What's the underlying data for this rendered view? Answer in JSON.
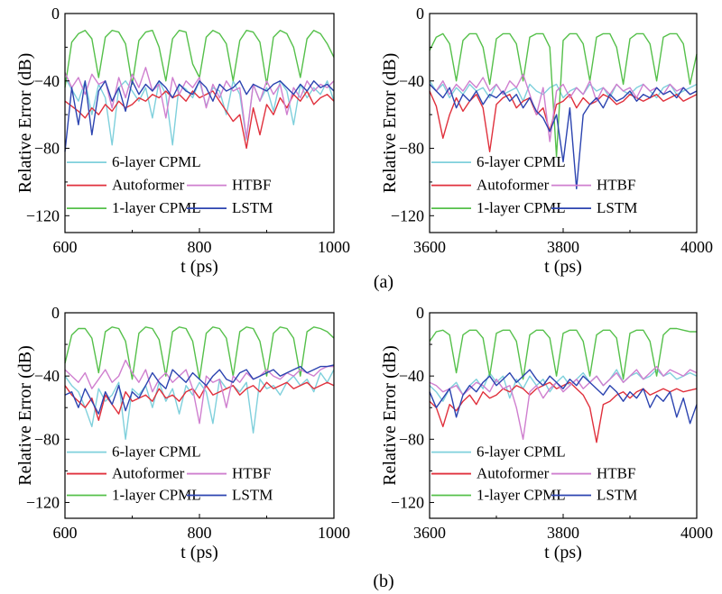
{
  "colors": {
    "six_layer_cpml": "#7fd0dc",
    "autoformer": "#e0303c",
    "htbf": "#cf7fcf",
    "one_layer_cpml": "#55c04a",
    "lstm": "#2c44b0"
  },
  "captions": {
    "a": "(a)",
    "b": "(b)"
  },
  "chart_data": [
    {
      "type": "line",
      "panel": "a-left",
      "xlabel": "t (ps)",
      "ylabel": "Relative Error (dB)",
      "xlim": [
        600,
        1000
      ],
      "ylim": [
        -130,
        0
      ],
      "xticks": [
        "600",
        "800",
        "1000"
      ],
      "yticks": [
        "0",
        "−40",
        "−80",
        "−120"
      ],
      "series": [
        {
          "name": "6-layer CPML",
          "key": "six_layer_cpml",
          "values": [
            -38,
            -45,
            -52,
            -40,
            -60,
            -42,
            -50,
            -78,
            -44,
            -40,
            -46,
            -52,
            -44,
            -62,
            -40,
            -48,
            -78,
            -42,
            -45,
            -50,
            -40,
            -55,
            -44,
            -46,
            -60,
            -40,
            -48,
            -75,
            -42,
            -52,
            -44,
            -58,
            -40,
            -46,
            -66,
            -42,
            -50,
            -44,
            -48,
            -40,
            -52
          ]
        },
        {
          "name": "Autoformer",
          "key": "autoformer",
          "values": [
            -52,
            -55,
            -58,
            -62,
            -56,
            -60,
            -54,
            -58,
            -52,
            -56,
            -54,
            -50,
            -52,
            -48,
            -50,
            -46,
            -50,
            -48,
            -52,
            -46,
            -50,
            -48,
            -46,
            -52,
            -58,
            -64,
            -60,
            -80,
            -56,
            -72,
            -54,
            -60,
            -50,
            -56,
            -48,
            -52,
            -46,
            -54,
            -50,
            -48,
            -52
          ]
        },
        {
          "name": "HTBF",
          "key": "htbf",
          "values": [
            -35,
            -44,
            -38,
            -48,
            -36,
            -42,
            -40,
            -56,
            -38,
            -50,
            -36,
            -44,
            -32,
            -46,
            -42,
            -62,
            -38,
            -48,
            -40,
            -44,
            -38,
            -56,
            -42,
            -50,
            -40,
            -46,
            -44,
            -74,
            -42,
            -52,
            -40,
            -48,
            -42,
            -60,
            -44,
            -50,
            -40,
            -46,
            -42,
            -44,
            -40
          ]
        },
        {
          "name": "1-layer CPML",
          "key": "one_layer_cpml",
          "values": [
            -44,
            -17,
            -12,
            -10,
            -15,
            -38,
            -14,
            -10,
            -11,
            -18,
            -42,
            -16,
            -11,
            -10,
            -20,
            -40,
            -15,
            -10,
            -11,
            -30,
            -38,
            -14,
            -10,
            -12,
            -18,
            -40,
            -16,
            -10,
            -11,
            -17,
            -42,
            -14,
            -10,
            -12,
            -20,
            -38,
            -15,
            -10,
            -12,
            -18,
            -26
          ]
        },
        {
          "name": "LSTM",
          "key": "lstm",
          "values": [
            -82,
            -44,
            -66,
            -40,
            -72,
            -46,
            -40,
            -52,
            -44,
            -58,
            -40,
            -48,
            -42,
            -46,
            -40,
            -44,
            -50,
            -42,
            -46,
            -48,
            -40,
            -44,
            -52,
            -42,
            -46,
            -44,
            -40,
            -48,
            -42,
            -44,
            -46,
            -42,
            -40,
            -44,
            -48,
            -42,
            -46,
            -40,
            -44,
            -42,
            -46
          ]
        }
      ]
    },
    {
      "type": "line",
      "panel": "a-right",
      "xlabel": "t (ps)",
      "ylabel": "Relative Error (dB)",
      "xlim": [
        3600,
        4000
      ],
      "ylim": [
        -130,
        0
      ],
      "xticks": [
        "3600",
        "3800",
        "4000"
      ],
      "yticks": [
        "0",
        "−40",
        "−80",
        "−120"
      ],
      "series": [
        {
          "name": "6-layer CPML",
          "key": "six_layer_cpml",
          "values": [
            -40,
            -46,
            -42,
            -50,
            -44,
            -48,
            -42,
            -46,
            -44,
            -50,
            -42,
            -48,
            -46,
            -44,
            -52,
            -42,
            -46,
            -48,
            -44,
            -42,
            -50,
            -46,
            -44,
            -48,
            -42,
            -46,
            -44,
            -50,
            -42,
            -46,
            -48,
            -44,
            -42,
            -46,
            -50,
            -44,
            -42,
            -48,
            -46,
            -44,
            -42
          ]
        },
        {
          "name": "Autoformer",
          "key": "autoformer",
          "values": [
            -46,
            -55,
            -74,
            -60,
            -50,
            -58,
            -52,
            -48,
            -56,
            -82,
            -54,
            -50,
            -48,
            -56,
            -52,
            -50,
            -60,
            -56,
            -70,
            -54,
            -52,
            -48,
            -56,
            -50,
            -54,
            -52,
            -48,
            -50,
            -54,
            -52,
            -48,
            -50,
            -52,
            -50,
            -48,
            -52,
            -50,
            -48,
            -52,
            -50,
            -48
          ]
        },
        {
          "name": "HTBF",
          "key": "htbf",
          "values": [
            -42,
            -46,
            -40,
            -48,
            -42,
            -46,
            -40,
            -44,
            -38,
            -46,
            -42,
            -48,
            -40,
            -44,
            -36,
            -48,
            -60,
            -44,
            -76,
            -46,
            -42,
            -50,
            -44,
            -48,
            -40,
            -52,
            -44,
            -48,
            -42,
            -46,
            -44,
            -50,
            -42,
            -46,
            -44,
            -48,
            -42,
            -46,
            -44,
            -48,
            -46
          ]
        },
        {
          "name": "1-layer CPML",
          "key": "one_layer_cpml",
          "values": [
            -22,
            -14,
            -12,
            -18,
            -40,
            -16,
            -12,
            -12,
            -20,
            -42,
            -15,
            -12,
            -12,
            -18,
            -40,
            -14,
            -12,
            -12,
            -20,
            -85,
            -16,
            -12,
            -12,
            -18,
            -40,
            -14,
            -12,
            -12,
            -20,
            -42,
            -15,
            -12,
            -12,
            -18,
            -40,
            -14,
            -12,
            -12,
            -18,
            -42,
            -24
          ]
        },
        {
          "name": "LSTM",
          "key": "lstm",
          "values": [
            -42,
            -46,
            -50,
            -44,
            -56,
            -48,
            -52,
            -46,
            -54,
            -48,
            -50,
            -46,
            -52,
            -48,
            -56,
            -50,
            -58,
            -62,
            -70,
            -60,
            -88,
            -56,
            -104,
            -60,
            -54,
            -50,
            -56,
            -48,
            -52,
            -50,
            -46,
            -52,
            -48,
            -50,
            -44,
            -48,
            -46,
            -50,
            -44,
            -48,
            -46
          ]
        }
      ]
    },
    {
      "type": "line",
      "panel": "b-left",
      "xlabel": "t (ps)",
      "ylabel": "Relative Error (dB)",
      "xlim": [
        600,
        1000
      ],
      "ylim": [
        -130,
        0
      ],
      "xticks": [
        "600",
        "800",
        "1000"
      ],
      "yticks": [
        "0",
        "−40",
        "−80",
        "−120"
      ],
      "series": [
        {
          "name": "6-layer CPML",
          "key": "six_layer_cpml",
          "values": [
            -40,
            -46,
            -50,
            -60,
            -72,
            -48,
            -56,
            -52,
            -44,
            -80,
            -48,
            -52,
            -46,
            -60,
            -44,
            -56,
            -48,
            -64,
            -46,
            -52,
            -44,
            -50,
            -70,
            -42,
            -48,
            -46,
            -50,
            -44,
            -76,
            -42,
            -48,
            -46,
            -52,
            -44,
            -40,
            -46,
            -42,
            -50,
            -38,
            -44,
            -36
          ]
        },
        {
          "name": "Autoformer",
          "key": "autoformer",
          "values": [
            -46,
            -52,
            -56,
            -60,
            -54,
            -68,
            -52,
            -58,
            -64,
            -50,
            -56,
            -54,
            -52,
            -56,
            -48,
            -54,
            -52,
            -56,
            -50,
            -48,
            -54,
            -46,
            -52,
            -50,
            -48,
            -46,
            -52,
            -48,
            -46,
            -50,
            -44,
            -48,
            -46,
            -44,
            -48,
            -46,
            -44,
            -48,
            -46,
            -44,
            -46
          ]
        },
        {
          "name": "HTBF",
          "key": "htbf",
          "values": [
            -36,
            -40,
            -44,
            -38,
            -48,
            -42,
            -36,
            -44,
            -40,
            -30,
            -38,
            -44,
            -36,
            -50,
            -42,
            -38,
            -44,
            -40,
            -36,
            -48,
            -70,
            -40,
            -44,
            -42,
            -60,
            -40,
            -44,
            -38,
            -42,
            -40,
            -36,
            -40,
            -42,
            -38,
            -40,
            -36,
            -38,
            -40,
            -36,
            -34,
            -34
          ]
        },
        {
          "name": "1-layer CPML",
          "key": "one_layer_cpml",
          "values": [
            -32,
            -14,
            -10,
            -10,
            -16,
            -38,
            -12,
            -9,
            -10,
            -18,
            -42,
            -13,
            -9,
            -10,
            -17,
            -40,
            -12,
            -9,
            -10,
            -18,
            -42,
            -13,
            -9,
            -10,
            -16,
            -40,
            -12,
            -9,
            -10,
            -18,
            -40,
            -13,
            -9,
            -10,
            -16,
            -40,
            -12,
            -9,
            -10,
            -12,
            -16
          ]
        },
        {
          "name": "LSTM",
          "key": "lstm",
          "values": [
            -52,
            -50,
            -60,
            -48,
            -56,
            -64,
            -50,
            -58,
            -46,
            -62,
            -50,
            -54,
            -46,
            -38,
            -44,
            -48,
            -36,
            -40,
            -44,
            -38,
            -42,
            -46,
            -40,
            -36,
            -42,
            -44,
            -38,
            -36,
            -42,
            -40,
            -38,
            -36,
            -40,
            -38,
            -36,
            -34,
            -38,
            -36,
            -34,
            -34,
            -33
          ]
        }
      ]
    },
    {
      "type": "line",
      "panel": "b-right",
      "xlabel": "t (ps)",
      "ylabel": "Relative Error (dB)",
      "xlim": [
        3600,
        4000
      ],
      "ylim": [
        -130,
        0
      ],
      "xticks": [
        "3600",
        "3800",
        "4000"
      ],
      "yticks": [
        "0",
        "−40",
        "−80",
        "−120"
      ],
      "series": [
        {
          "name": "6-layer CPML",
          "key": "six_layer_cpml",
          "values": [
            -46,
            -50,
            -56,
            -48,
            -44,
            -52,
            -46,
            -42,
            -48,
            -38,
            -44,
            -40,
            -54,
            -42,
            -48,
            -40,
            -46,
            -42,
            -50,
            -44,
            -40,
            -46,
            -42,
            -38,
            -44,
            -40,
            -46,
            -42,
            -36,
            -44,
            -40,
            -38,
            -42,
            -40,
            -36,
            -40,
            -38,
            -42,
            -40,
            -38,
            -40
          ]
        },
        {
          "name": "Autoformer",
          "key": "autoformer",
          "values": [
            -56,
            -60,
            -72,
            -58,
            -62,
            -56,
            -52,
            -58,
            -50,
            -54,
            -52,
            -48,
            -50,
            -46,
            -48,
            -52,
            -48,
            -46,
            -44,
            -48,
            -46,
            -44,
            -48,
            -52,
            -60,
            -82,
            -58,
            -56,
            -52,
            -50,
            -54,
            -50,
            -48,
            -52,
            -50,
            -48,
            -50,
            -48,
            -50,
            -49,
            -48
          ]
        },
        {
          "name": "HTBF",
          "key": "htbf",
          "values": [
            -44,
            -46,
            -50,
            -48,
            -46,
            -52,
            -48,
            -44,
            -46,
            -50,
            -42,
            -48,
            -46,
            -60,
            -80,
            -50,
            -46,
            -54,
            -48,
            -44,
            -50,
            -46,
            -42,
            -48,
            -44,
            -40,
            -46,
            -42,
            -38,
            -44,
            -40,
            -36,
            -42,
            -38,
            -34,
            -40,
            -36,
            -38,
            -40,
            -36,
            -38
          ]
        },
        {
          "name": "1-layer CPML",
          "key": "one_layer_cpml",
          "values": [
            -18,
            -12,
            -11,
            -14,
            -38,
            -14,
            -11,
            -11,
            -16,
            -40,
            -13,
            -11,
            -11,
            -18,
            -42,
            -14,
            -11,
            -11,
            -16,
            -40,
            -13,
            -11,
            -11,
            -18,
            -40,
            -14,
            -11,
            -11,
            -16,
            -42,
            -13,
            -11,
            -11,
            -18,
            -40,
            -14,
            -10,
            -10,
            -11,
            -12,
            -12
          ]
        },
        {
          "name": "LSTM",
          "key": "lstm",
          "values": [
            -50,
            -60,
            -54,
            -48,
            -66,
            -52,
            -46,
            -50,
            -44,
            -40,
            -46,
            -42,
            -38,
            -44,
            -40,
            -36,
            -42,
            -46,
            -40,
            -44,
            -48,
            -42,
            -46,
            -40,
            -44,
            -48,
            -52,
            -46,
            -50,
            -56,
            -50,
            -54,
            -48,
            -60,
            -52,
            -56,
            -50,
            -66,
            -54,
            -70,
            -58
          ]
        }
      ]
    }
  ]
}
